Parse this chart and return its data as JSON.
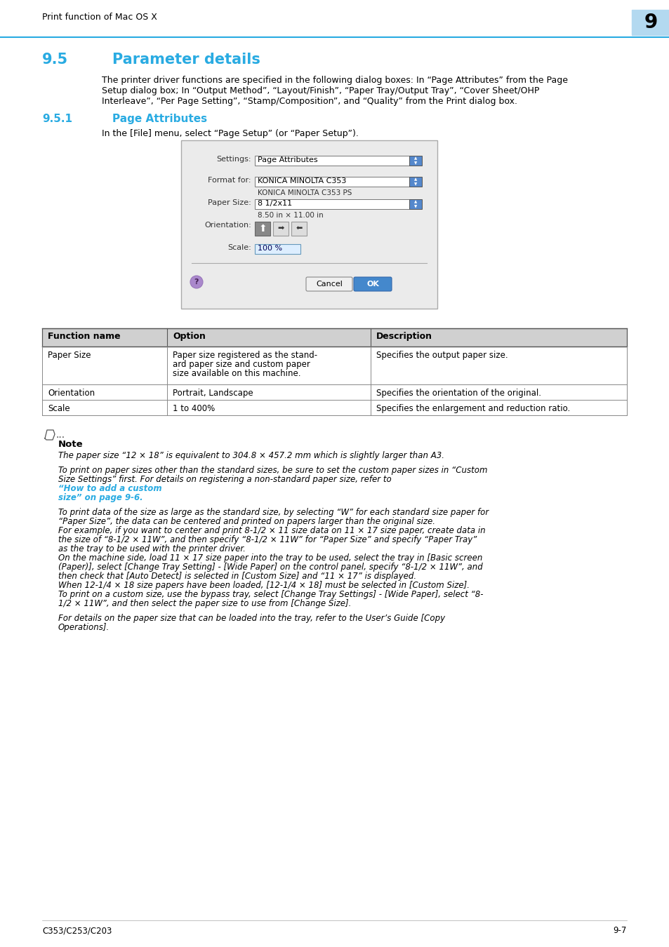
{
  "page_header_text": "Print function of Mac OS X",
  "page_number": "9",
  "page_number_bg": "#b3d9f0",
  "header_line_color": "#29abe2",
  "section_number": "9.5",
  "section_title": "Parameter details",
  "section_color": "#29abe2",
  "section_body_lines": [
    "The printer driver functions are specified in the following dialog boxes: In “Page Attributes” from the Page",
    "Setup dialog box; In “Output Method”, “Layout/Finish”, “Paper Tray/Output Tray”, “Cover Sheet/OHP",
    "Interleave”, “Per Page Setting”, “Stamp/Composition”, and “Quality” from the Print dialog box."
  ],
  "subsection_number": "9.5.1",
  "subsection_title": "Page Attributes",
  "subsection_color": "#29abe2",
  "subsection_body": "In the [File] menu, select “Page Setup” (or “Paper Setup”).",
  "table_header": [
    "Function name",
    "Option",
    "Description"
  ],
  "table_rows": [
    [
      "Paper Size",
      "Paper size registered as the stand-\nard paper size and custom paper\nsize available on this machine.",
      "Specifies the output paper size."
    ],
    [
      "Orientation",
      "Portrait, Landscape",
      "Specifies the orientation of the original."
    ],
    [
      "Scale",
      "1 to 400%",
      "Specifies the enlargement and reduction ratio."
    ]
  ],
  "note_title": "Note",
  "note_lines": [
    "The paper size “12 × 18” is equivalent to 304.8 × 457.2 mm which is slightly larger than A3.",
    "",
    "To print on paper sizes other than the standard sizes, be sure to set the custom paper sizes in “Custom",
    "Size Settings” first. For details on registering a non-standard paper size, refer to ",
    "“How to add a custom",
    "size” on page 9-6.",
    "",
    "To print data of the size as large as the standard size, by selecting “W” for each standard size paper for",
    "“Paper Size”, the data can be centered and printed on papers larger than the original size.",
    "For example, if you want to center and print 8-1/2 × 11 size data on 11 × 17 size paper, create data in",
    "the size of “8-1/2 × 11W”, and then specify “8-1/2 × 11W” for “Paper Size” and specify “Paper Tray”",
    "as the tray to be used with the printer driver.",
    "On the machine side, load 11 × 17 size paper into the tray to be used, select the tray in [Basic screen",
    "(Paper)], select [Change Tray Setting] - [Wide Paper] on the control panel, specify “8-1/2 × 11W”, and",
    "then check that [Auto Detect] is selected in [Custom Size] and “11 × 17” is displayed.",
    "When 12-1/4 × 18 size papers have been loaded, [12-1/4 × 18] must be selected in [Custom Size].",
    "To print on a custom size, use the bypass tray, select [Change Tray Settings] - [Wide Paper], select “8-",
    "1/2 × 11W”, and then select the paper size to use from [Change Size].",
    "",
    "For details on the paper size that can be loaded into the tray, refer to the User’s Guide [Copy",
    "Operations]."
  ],
  "note_link_indices": [
    4,
    5
  ],
  "footer_left": "C353/C253/C203",
  "footer_right": "9-7",
  "bg_color": "#ffffff",
  "link_color": "#29abe2"
}
